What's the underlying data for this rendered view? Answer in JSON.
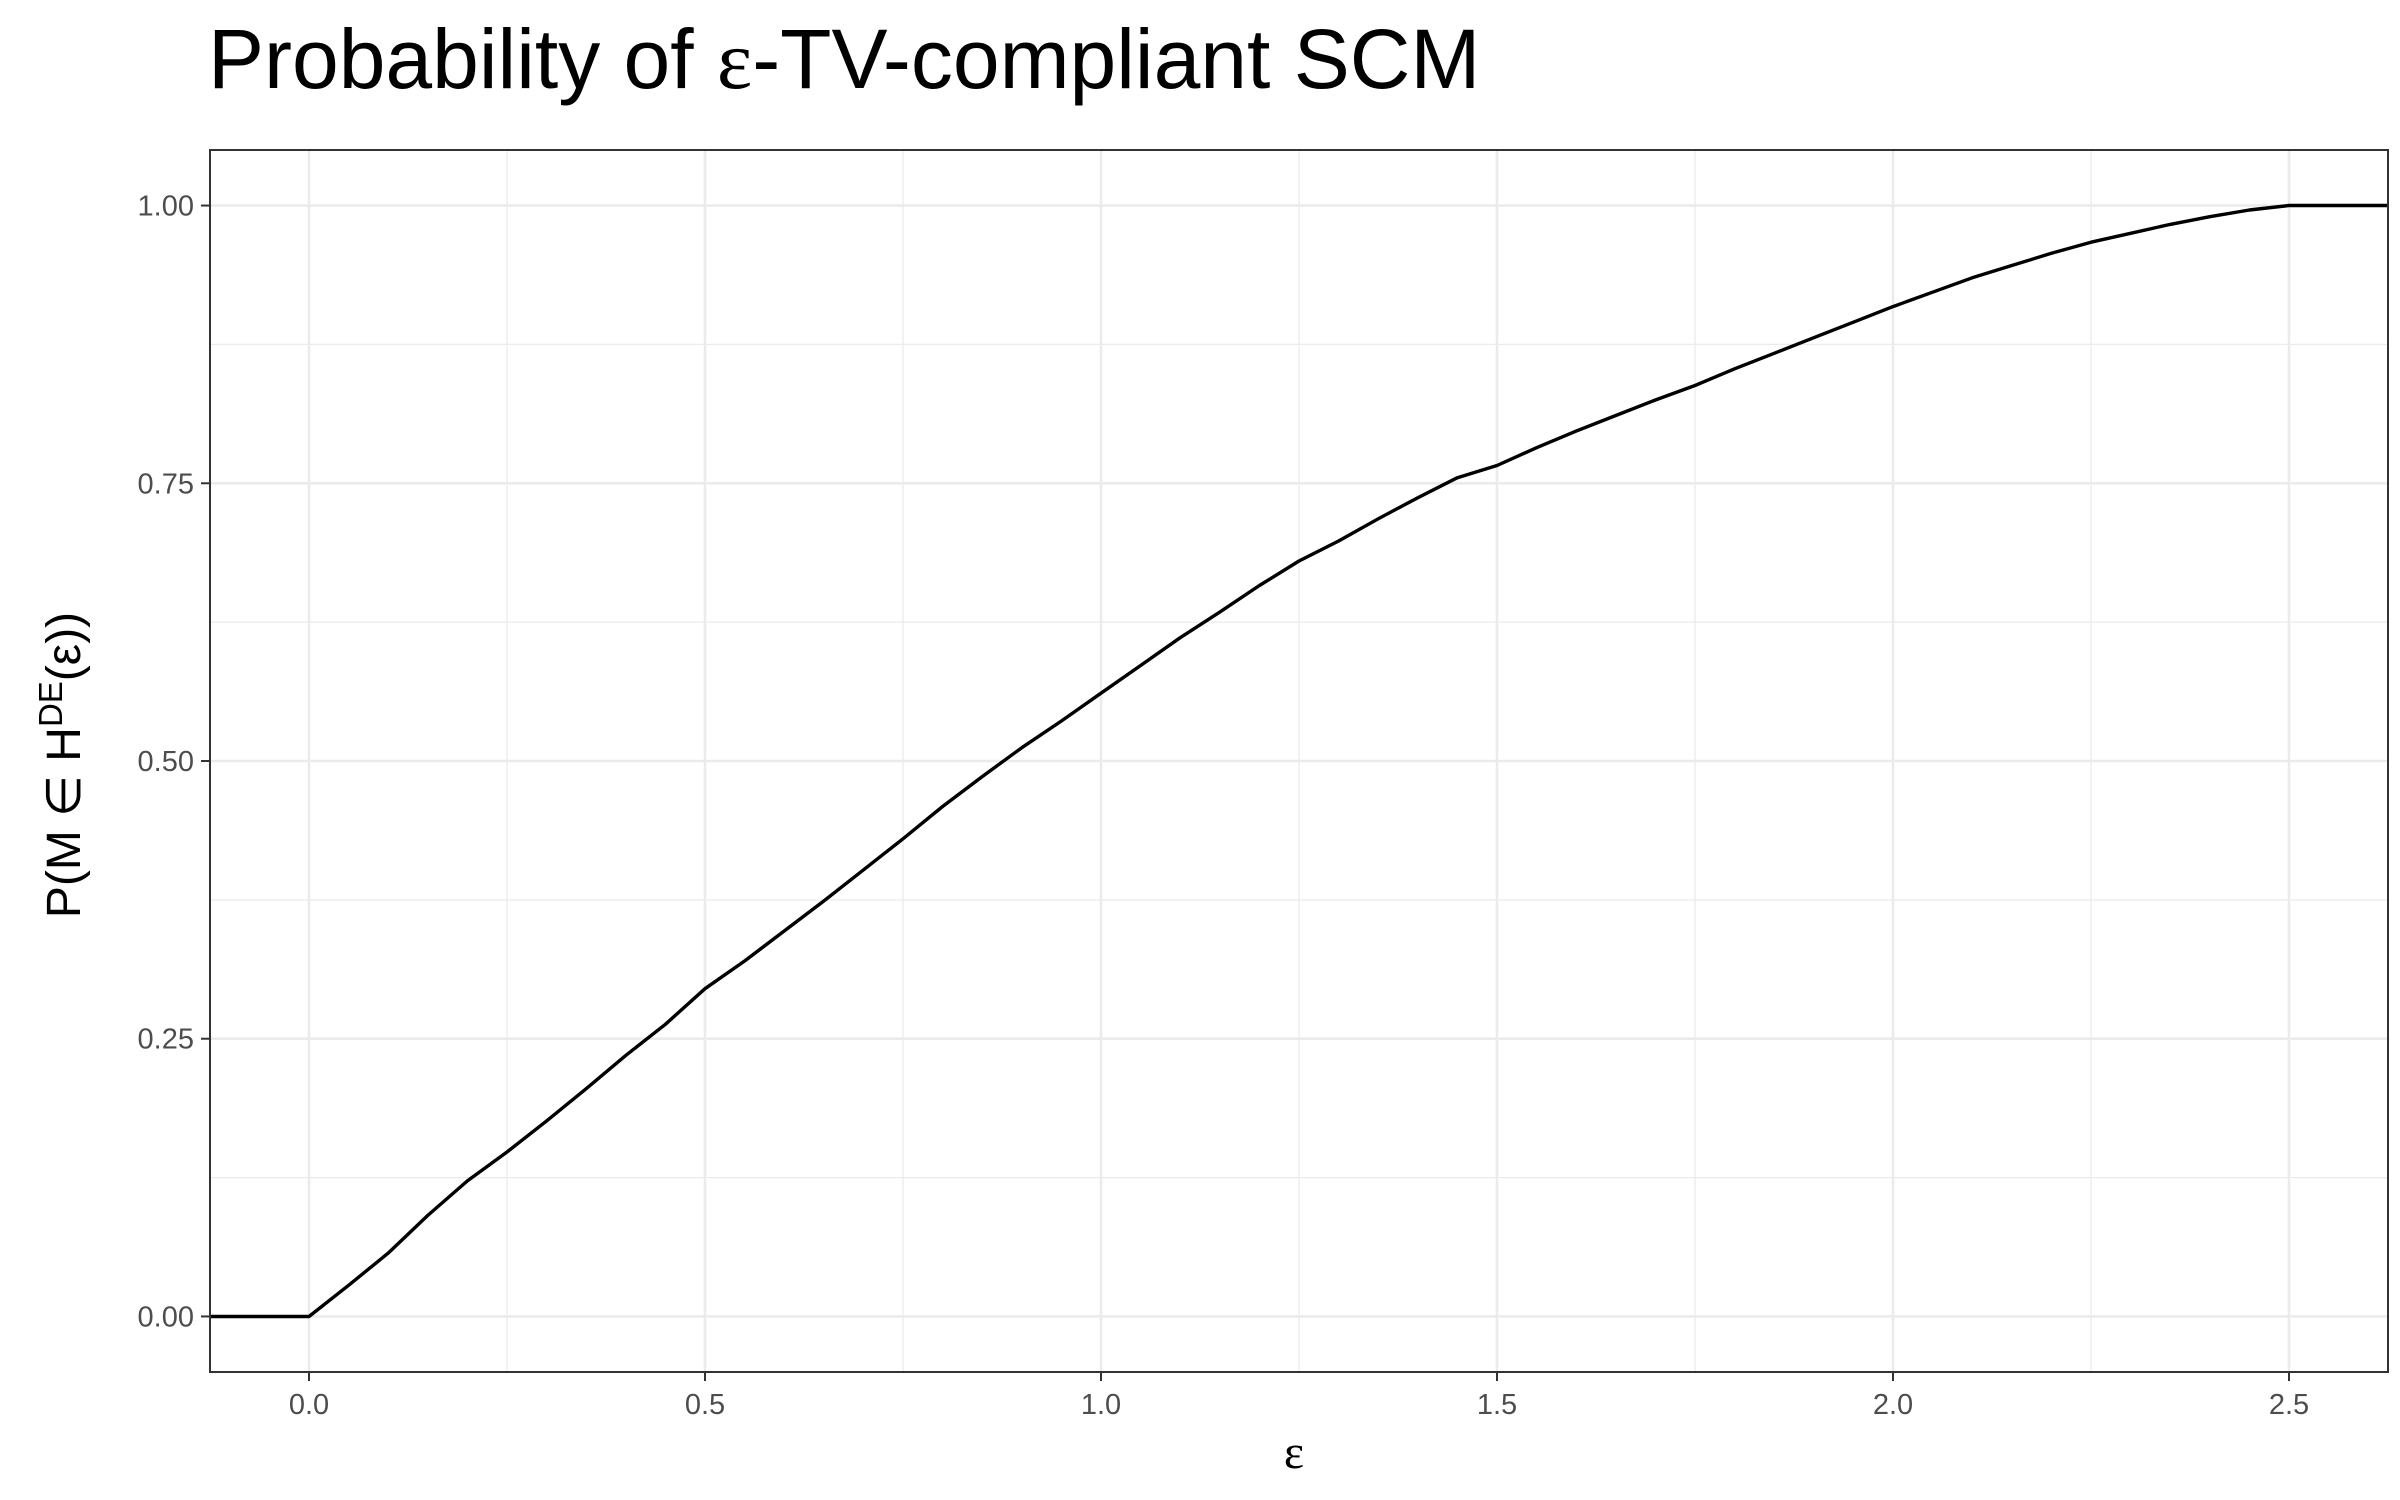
{
  "chart_data": {
    "type": "line",
    "title": {
      "before": "Probability of ",
      "symbol": "ε",
      "after": "-TV-compliant SCM"
    },
    "xlabel": "ε",
    "ylabel": {
      "prefix": "P(M ∈ H",
      "superscript": "DE",
      "suffix": "(ε))"
    },
    "xlim": [
      -0.125,
      2.625
    ],
    "ylim": [
      -0.05,
      1.05
    ],
    "x_ticks": [
      0.0,
      0.5,
      1.0,
      1.5,
      2.0,
      2.5
    ],
    "x_tick_labels": [
      "0.0",
      "0.5",
      "1.0",
      "1.5",
      "2.0",
      "2.5"
    ],
    "y_ticks": [
      0.0,
      0.25,
      0.5,
      0.75,
      1.0
    ],
    "y_tick_labels": [
      "0.00",
      "0.25",
      "0.50",
      "0.75",
      "1.00"
    ],
    "grid": true,
    "legend": "none",
    "series": [
      {
        "color": "#000000",
        "points": [
          [
            -0.125,
            0.0
          ],
          [
            0.0,
            0.0
          ],
          [
            0.05,
            0.028
          ],
          [
            0.1,
            0.057
          ],
          [
            0.15,
            0.091
          ],
          [
            0.2,
            0.122
          ],
          [
            0.25,
            0.148
          ],
          [
            0.3,
            0.176
          ],
          [
            0.35,
            0.205
          ],
          [
            0.4,
            0.235
          ],
          [
            0.45,
            0.263
          ],
          [
            0.5,
            0.295
          ],
          [
            0.55,
            0.32
          ],
          [
            0.6,
            0.347
          ],
          [
            0.65,
            0.374
          ],
          [
            0.7,
            0.402
          ],
          [
            0.75,
            0.43
          ],
          [
            0.8,
            0.459
          ],
          [
            0.85,
            0.486
          ],
          [
            0.9,
            0.512
          ],
          [
            0.95,
            0.536
          ],
          [
            1.0,
            0.561
          ],
          [
            1.05,
            0.586
          ],
          [
            1.1,
            0.611
          ],
          [
            1.15,
            0.634
          ],
          [
            1.2,
            0.658
          ],
          [
            1.25,
            0.68
          ],
          [
            1.3,
            0.698
          ],
          [
            1.35,
            0.718
          ],
          [
            1.4,
            0.737
          ],
          [
            1.45,
            0.755
          ],
          [
            1.5,
            0.766
          ],
          [
            1.55,
            0.782
          ],
          [
            1.6,
            0.797
          ],
          [
            1.65,
            0.811
          ],
          [
            1.7,
            0.825
          ],
          [
            1.75,
            0.838
          ],
          [
            1.8,
            0.853
          ],
          [
            1.85,
            0.867
          ],
          [
            1.9,
            0.881
          ],
          [
            1.95,
            0.895
          ],
          [
            2.0,
            0.909
          ],
          [
            2.05,
            0.922
          ],
          [
            2.1,
            0.935
          ],
          [
            2.15,
            0.946
          ],
          [
            2.2,
            0.957
          ],
          [
            2.25,
            0.967
          ],
          [
            2.3,
            0.975
          ],
          [
            2.35,
            0.983
          ],
          [
            2.4,
            0.99
          ],
          [
            2.45,
            0.996
          ],
          [
            2.5,
            1.0
          ],
          [
            2.625,
            1.0
          ]
        ]
      }
    ]
  }
}
